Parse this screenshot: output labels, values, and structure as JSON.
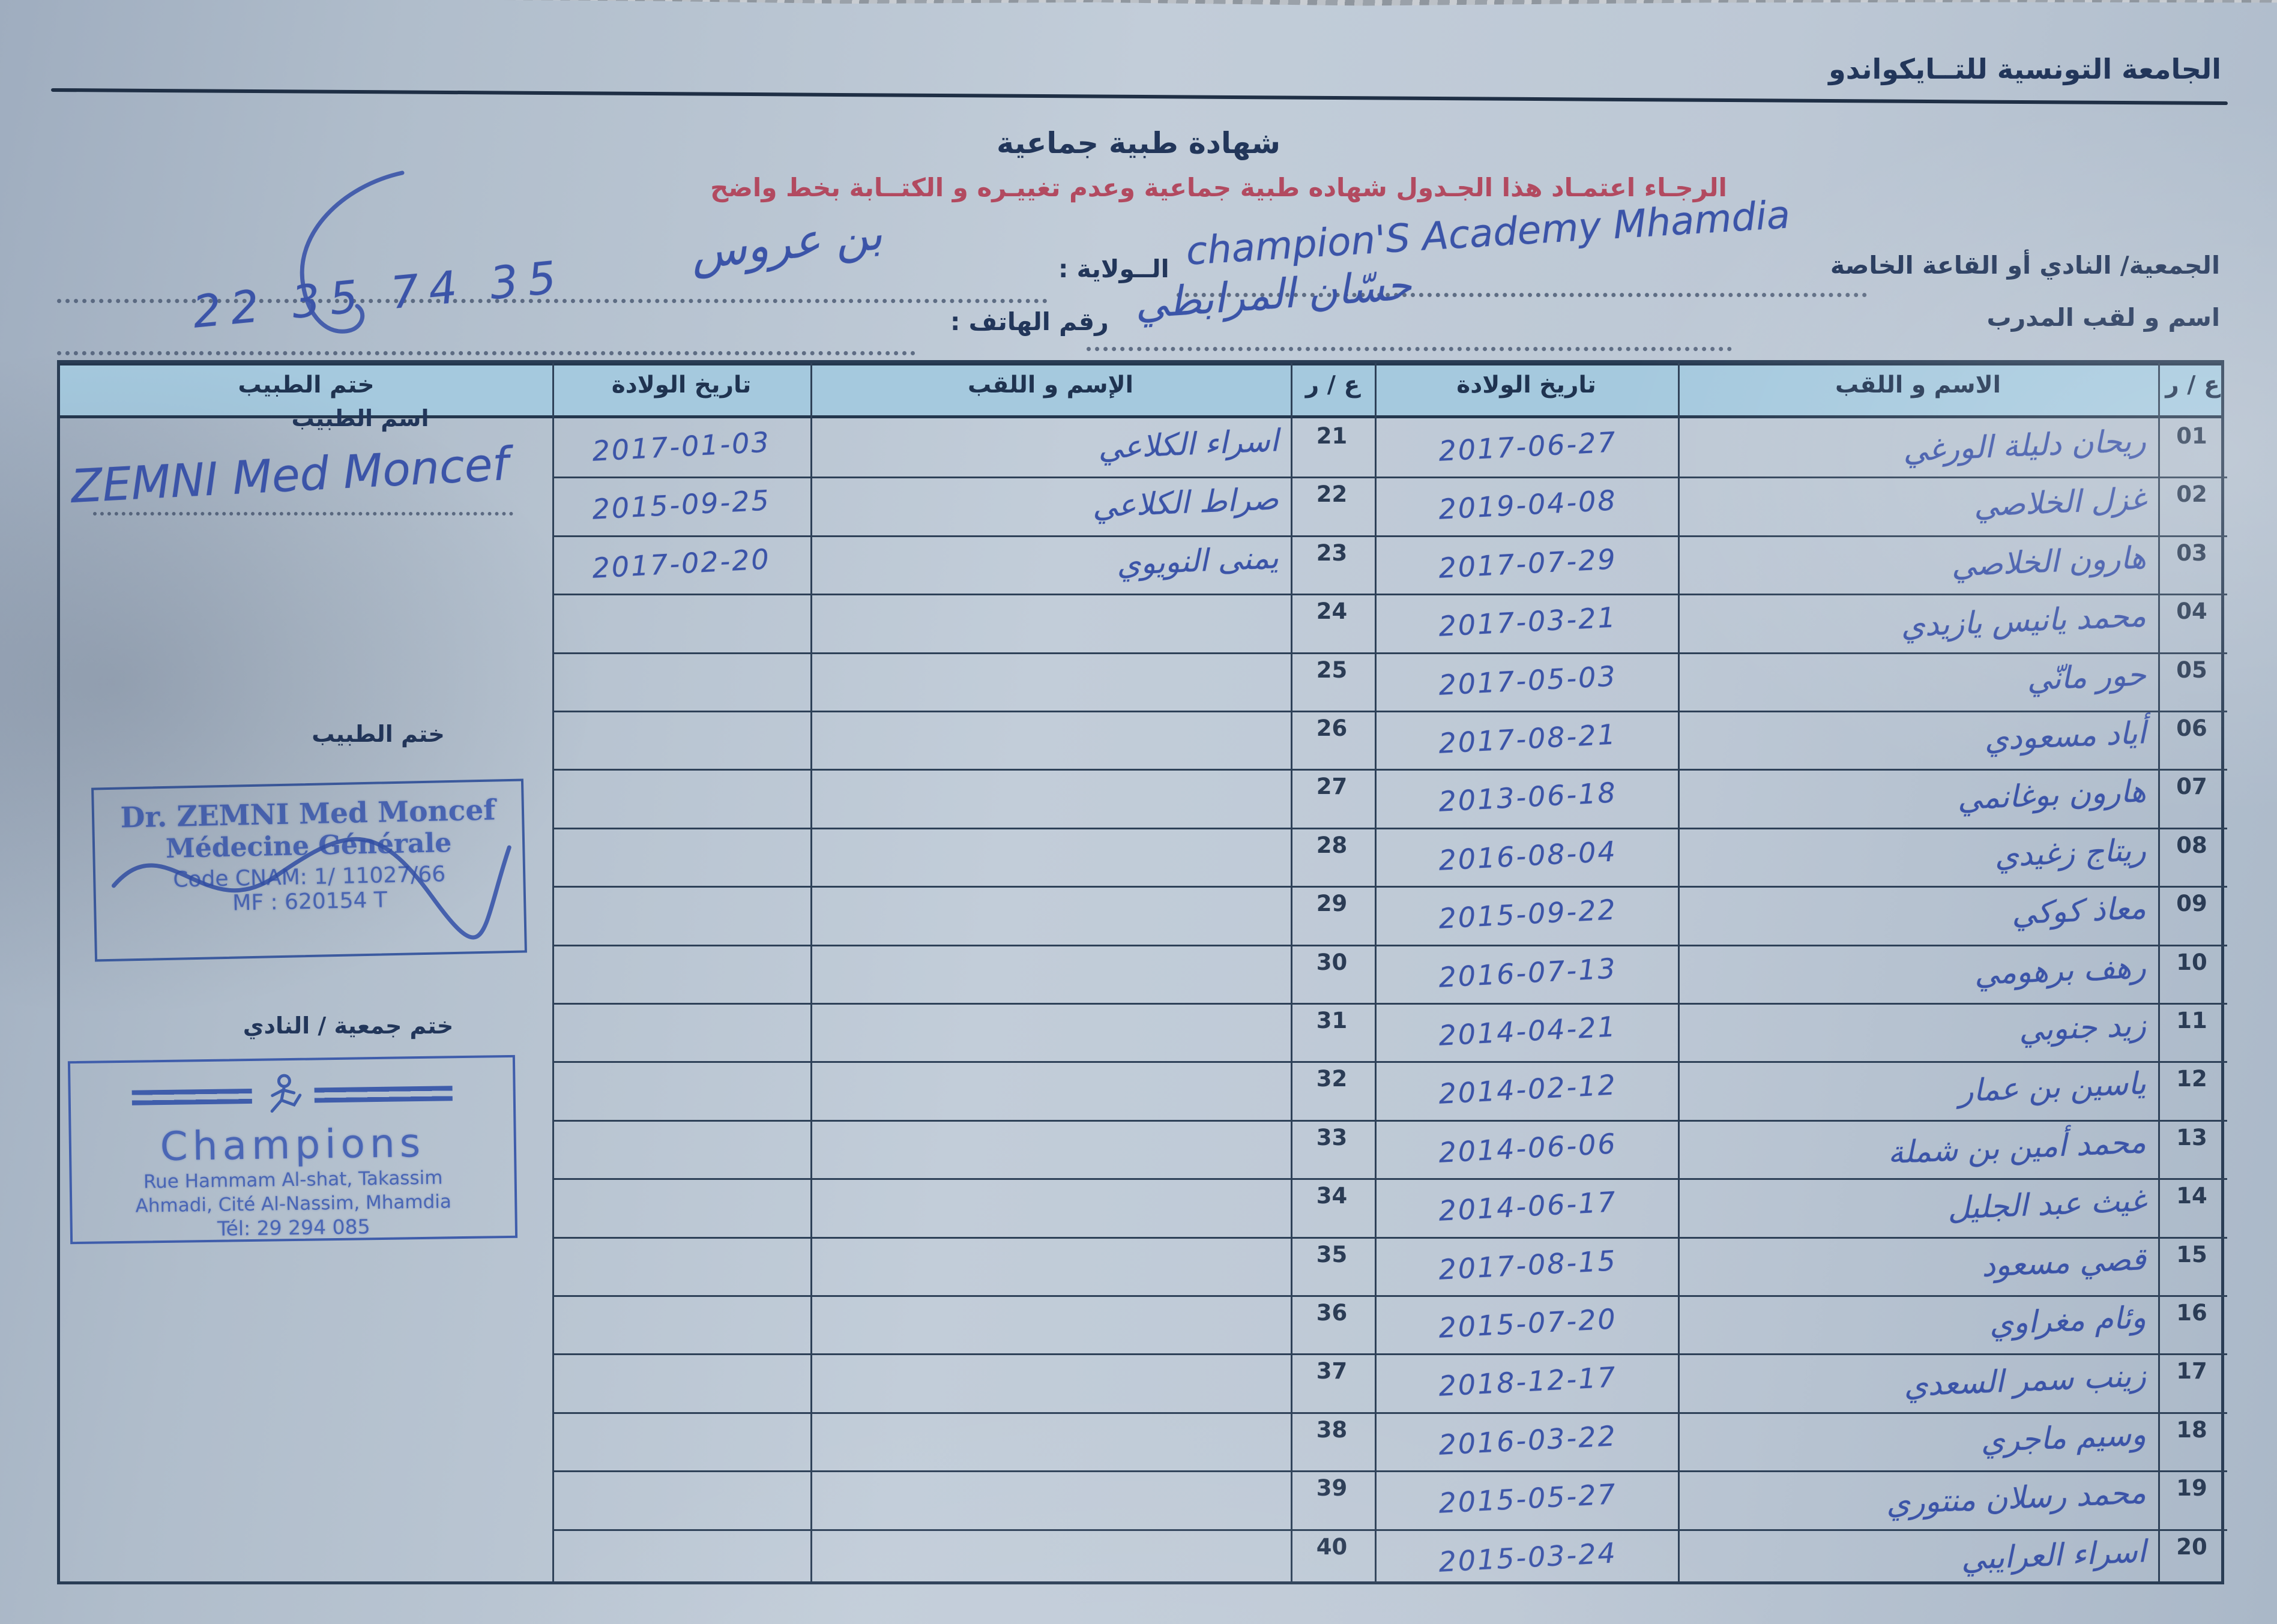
{
  "header": {
    "federation": "الجامعة التونسية للتــايكواندو",
    "title": "شهادة طبية جماعية",
    "instruction": "الرجـاء اعتمـاد هذا الجـدول  شهاده طبية جماعية وعدم تغييـره و الكتــابة بخط واضح"
  },
  "fields": {
    "club_label": "الجمعية/ النادي أو القاعة الخاصة",
    "club_value": "champion'S Academy Mhamdia",
    "state_label": "الــولاية :",
    "state_value": "بن عروس",
    "coach_label": "اسم و لقب المدرب",
    "coach_value": "حسّان المرابطي",
    "phone_label": "رقم الهاتف :",
    "phone_value": "22 35 74 35"
  },
  "table": {
    "headers": {
      "num_right": "ع / ر",
      "name_right": "الاسم و اللقب",
      "dob_right": "تاريخ الولادة",
      "num_left": "ع / ر",
      "name_left": "الإسم و اللقب",
      "dob_left": "تاريخ الولادة",
      "stamp": "ختم الطبيب"
    },
    "right_rows": [
      {
        "num": "01",
        "name": "ريحان دليلة الورغي",
        "dob": "2017-06-27"
      },
      {
        "num": "02",
        "name": "غزل الخلاصي",
        "dob": "2019-04-08"
      },
      {
        "num": "03",
        "name": "هارون الخلاصي",
        "dob": "2017-07-29"
      },
      {
        "num": "04",
        "name": "محمد يانيس يازيدي",
        "dob": "2017-03-21"
      },
      {
        "num": "05",
        "name": "حور مانّي",
        "dob": "2017-05-03"
      },
      {
        "num": "06",
        "name": "أياد مسعودي",
        "dob": "2017-08-21"
      },
      {
        "num": "07",
        "name": "هارون بوغانمي",
        "dob": "2013-06-18"
      },
      {
        "num": "08",
        "name": "ريتاج زغيدي",
        "dob": "2016-08-04"
      },
      {
        "num": "09",
        "name": "معاذ كوكي",
        "dob": "2015-09-22"
      },
      {
        "num": "10",
        "name": "رهف برهومي",
        "dob": "2016-07-13"
      },
      {
        "num": "11",
        "name": "زيد جنوبي",
        "dob": "2014-04-21"
      },
      {
        "num": "12",
        "name": "ياسين بن عمار",
        "dob": "2014-02-12"
      },
      {
        "num": "13",
        "name": "محمد أمين بن شملة",
        "dob": "2014-06-06"
      },
      {
        "num": "14",
        "name": "غيث عبد الجليل",
        "dob": "2014-06-17"
      },
      {
        "num": "15",
        "name": "قصي مسعود",
        "dob": "2017-08-15"
      },
      {
        "num": "16",
        "name": "وئام مغراوي",
        "dob": "2015-07-20"
      },
      {
        "num": "17",
        "name": "زينب سمر السعدي",
        "dob": "2018-12-17"
      },
      {
        "num": "18",
        "name": "وسيم ماجري",
        "dob": "2016-03-22"
      },
      {
        "num": "19",
        "name": "محمد رسلان منتوري",
        "dob": "2015-05-27"
      },
      {
        "num": "20",
        "name": "اسراء العرايبي",
        "dob": "2015-03-24"
      }
    ],
    "left_rows": [
      {
        "num": "21",
        "name": "اسراء الكلاعي",
        "dob": "2017-01-03"
      },
      {
        "num": "22",
        "name": "صراط الكلاعي",
        "dob": "2015-09-25"
      },
      {
        "num": "23",
        "name": "يمنى النويوي",
        "dob": "2017-02-20"
      },
      {
        "num": "24",
        "name": "",
        "dob": ""
      },
      {
        "num": "25",
        "name": "",
        "dob": ""
      },
      {
        "num": "26",
        "name": "",
        "dob": ""
      },
      {
        "num": "27",
        "name": "",
        "dob": ""
      },
      {
        "num": "28",
        "name": "",
        "dob": ""
      },
      {
        "num": "29",
        "name": "",
        "dob": ""
      },
      {
        "num": "30",
        "name": "",
        "dob": ""
      },
      {
        "num": "31",
        "name": "",
        "dob": ""
      },
      {
        "num": "32",
        "name": "",
        "dob": ""
      },
      {
        "num": "33",
        "name": "",
        "dob": ""
      },
      {
        "num": "34",
        "name": "",
        "dob": ""
      },
      {
        "num": "35",
        "name": "",
        "dob": ""
      },
      {
        "num": "36",
        "name": "",
        "dob": ""
      },
      {
        "num": "37",
        "name": "",
        "dob": ""
      },
      {
        "num": "38",
        "name": "",
        "dob": ""
      },
      {
        "num": "39",
        "name": "",
        "dob": ""
      },
      {
        "num": "40",
        "name": "",
        "dob": ""
      }
    ]
  },
  "stamp_column": {
    "doctor_name_label": "اسم الطبيب",
    "doctor_signature": "ZEMNI Med Moncef",
    "doctor_stamp_label": "ختم الطبيب",
    "doctor_stamp": {
      "line1": "Dr. ZEMNI Med Moncef",
      "line2": "Médecine Générale",
      "line3": "Code CNAM: 1/ 11027/66",
      "line4": "MF : 620154 T"
    },
    "club_stamp_label": "ختم جمعية / النادي",
    "club_stamp": {
      "name": "Champions",
      "addr1": "Rue Hammam Al-shat, Takassim",
      "addr2": "Ahmadi, Cité Al-Nassim, Mhamdia",
      "tel": "Tél: 29 294 085"
    }
  },
  "colors": {
    "ink_blue": "#3b54a8",
    "stamp_blue": "#4a66b5",
    "print_navy": "#22365a",
    "instruction_red": "#b24a60",
    "header_fill": "#a5c9de"
  }
}
